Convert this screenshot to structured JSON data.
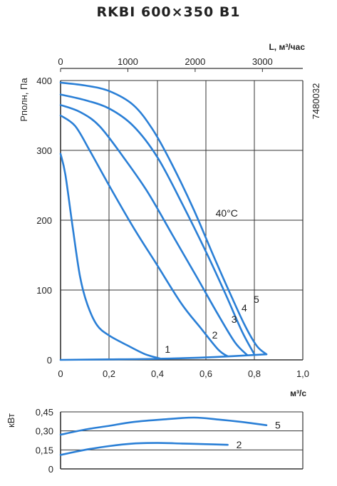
{
  "chart_data": [
    {
      "type": "line",
      "title": "RKBI 600×350 B1",
      "code": "7480032",
      "ylabel": "Pполн, Па",
      "ylim": [
        0,
        400
      ],
      "yticks": [
        "0",
        "100",
        "200",
        "300",
        "400"
      ],
      "xlabel": "м³/с",
      "xlim": [
        0,
        1.0
      ],
      "xticks": [
        "0",
        "0,2",
        "0,4",
        "0,6",
        "0,8",
        "1,0"
      ],
      "x2label": "L, м³/час",
      "x2lim": [
        0,
        3600
      ],
      "x2ticks": [
        "0",
        "1000",
        "2000",
        "3000"
      ],
      "grid": true,
      "annotation": "40°C",
      "series": [
        {
          "name": "1",
          "points": [
            [
              0,
              295
            ],
            [
              0.02,
              265
            ],
            [
              0.05,
              190
            ],
            [
              0.08,
              120
            ],
            [
              0.11,
              80
            ],
            [
              0.15,
              50
            ],
            [
              0.2,
              35
            ],
            [
              0.28,
              20
            ],
            [
              0.35,
              8
            ],
            [
              0.41,
              2
            ]
          ]
        },
        {
          "name": "2",
          "points": [
            [
              0,
              350
            ],
            [
              0.06,
              335
            ],
            [
              0.12,
              300
            ],
            [
              0.2,
              250
            ],
            [
              0.3,
              190
            ],
            [
              0.4,
              135
            ],
            [
              0.5,
              80
            ],
            [
              0.58,
              45
            ],
            [
              0.65,
              15
            ],
            [
              0.69,
              5
            ]
          ]
        },
        {
          "name": "3",
          "points": [
            [
              0,
              365
            ],
            [
              0.08,
              355
            ],
            [
              0.16,
              335
            ],
            [
              0.26,
              290
            ],
            [
              0.36,
              240
            ],
            [
              0.46,
              180
            ],
            [
              0.56,
              120
            ],
            [
              0.65,
              65
            ],
            [
              0.72,
              25
            ],
            [
              0.77,
              7
            ]
          ]
        },
        {
          "name": "4",
          "points": [
            [
              0,
              380
            ],
            [
              0.1,
              372
            ],
            [
              0.2,
              360
            ],
            [
              0.3,
              335
            ],
            [
              0.4,
              290
            ],
            [
              0.5,
              225
            ],
            [
              0.6,
              155
            ],
            [
              0.68,
              95
            ],
            [
              0.75,
              40
            ],
            [
              0.8,
              8
            ]
          ]
        },
        {
          "name": "5",
          "points": [
            [
              0,
              397
            ],
            [
              0.1,
              393
            ],
            [
              0.2,
              385
            ],
            [
              0.3,
              365
            ],
            [
              0.38,
              330
            ],
            [
              0.46,
              280
            ],
            [
              0.55,
              215
            ],
            [
              0.63,
              150
            ],
            [
              0.7,
              95
            ],
            [
              0.76,
              50
            ],
            [
              0.81,
              20
            ],
            [
              0.85,
              8
            ]
          ]
        },
        {
          "name": "",
          "points": [
            [
              0,
              0
            ],
            [
              0.2,
              0.7
            ],
            [
              0.4,
              1.5
            ],
            [
              0.6,
              3.5
            ],
            [
              0.75,
              6
            ],
            [
              0.85,
              8
            ]
          ]
        }
      ]
    },
    {
      "type": "line",
      "ylabel": "кВт",
      "ylim": [
        0,
        0.45
      ],
      "yticks": [
        "0",
        "0,15",
        "0,30",
        "0,45"
      ],
      "xlim": [
        0,
        1.0
      ],
      "grid": true,
      "series": [
        {
          "name": "5",
          "points": [
            [
              0,
              0.27
            ],
            [
              0.1,
              0.31
            ],
            [
              0.2,
              0.34
            ],
            [
              0.3,
              0.37
            ],
            [
              0.42,
              0.39
            ],
            [
              0.55,
              0.405
            ],
            [
              0.65,
              0.39
            ],
            [
              0.75,
              0.37
            ],
            [
              0.85,
              0.345
            ]
          ]
        },
        {
          "name": "2",
          "points": [
            [
              0,
              0.11
            ],
            [
              0.1,
              0.15
            ],
            [
              0.2,
              0.18
            ],
            [
              0.3,
              0.2
            ],
            [
              0.4,
              0.205
            ],
            [
              0.5,
              0.2
            ],
            [
              0.6,
              0.195
            ],
            [
              0.69,
              0.19
            ]
          ]
        }
      ]
    }
  ],
  "style": {
    "curve_color": "#2a7fd6",
    "grid_color": "#333333",
    "text_color": "#222222"
  }
}
